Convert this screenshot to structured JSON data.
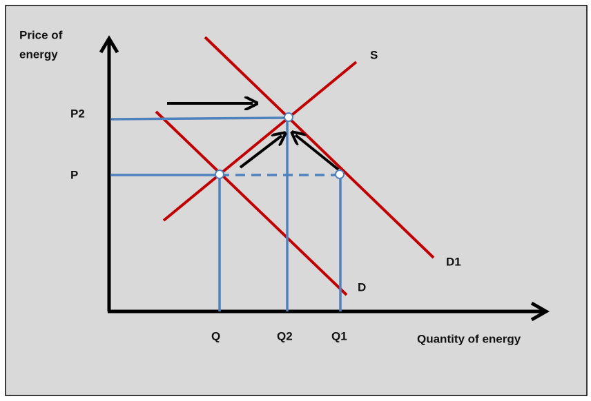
{
  "axes": {
    "y_label": [
      "Price of",
      "energy"
    ],
    "x_label": "Quantity of energy"
  },
  "curves": {
    "supply": "S",
    "demand": "D",
    "demand_new": "D1"
  },
  "price_levels": [
    "P2",
    "P"
  ],
  "quantity_levels": [
    "Q",
    "Q2",
    "Q1"
  ]
}
